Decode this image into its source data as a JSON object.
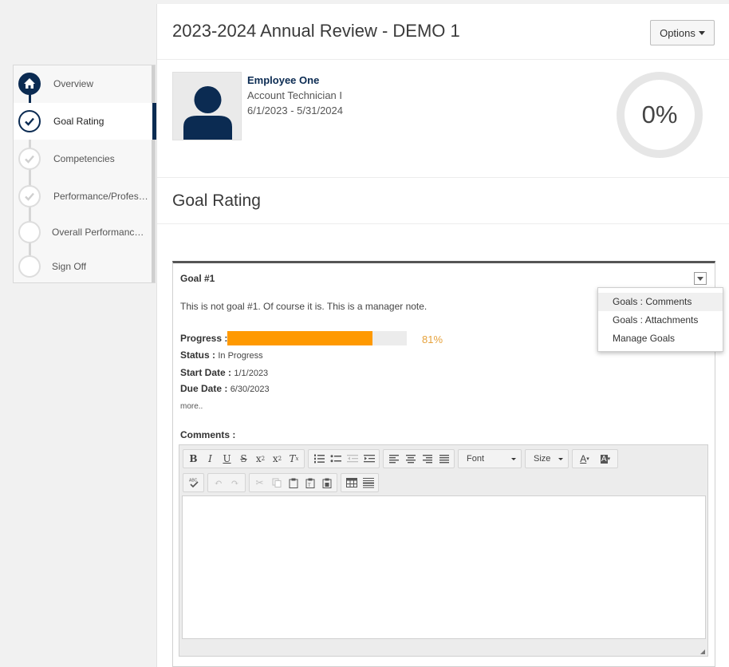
{
  "header": {
    "title": "2023-2024 Annual Review - DEMO 1",
    "options_label": "Options"
  },
  "stepper": [
    {
      "label": "Overview",
      "state": "current-icon",
      "icon": "home-icon"
    },
    {
      "label": "Goal Rating",
      "state": "active",
      "icon": "check-icon"
    },
    {
      "label": "Competencies",
      "state": "complete",
      "icon": "check-icon"
    },
    {
      "label": "Performance/Professional Development",
      "state": "complete",
      "icon": "check-icon"
    },
    {
      "label": "Overall Performance Rating",
      "state": "pending",
      "icon": ""
    },
    {
      "label": "Sign Off",
      "state": "pending",
      "icon": ""
    }
  ],
  "employee": {
    "name": "Employee One",
    "title": "Account Technician I",
    "period": "6/1/2023 - 5/31/2024",
    "completion": "0%"
  },
  "section_title": "Goal Rating",
  "goal": {
    "title": "Goal #1",
    "note": "This is not goal #1.  Of course it is.  This is a manager note.",
    "progress_label": "Progress :",
    "progress_value": 0.81,
    "progress_text": "81%",
    "status_label": "Status :",
    "status_value": "In Progress",
    "start_label": "Start Date :",
    "start_value": "1/1/2023",
    "due_label": "Due Date :",
    "due_value": "6/30/2023",
    "more_label": "more..",
    "comments_label": "Comments :"
  },
  "menu": [
    "Goals : Comments",
    "Goals : Attachments",
    "Manage Goals"
  ],
  "editor": {
    "font_label": "Font",
    "size_label": "Size"
  },
  "colors": {
    "brand": "#0b2b52",
    "progress": "#ff9900",
    "progress_text": "#e6a23c"
  }
}
